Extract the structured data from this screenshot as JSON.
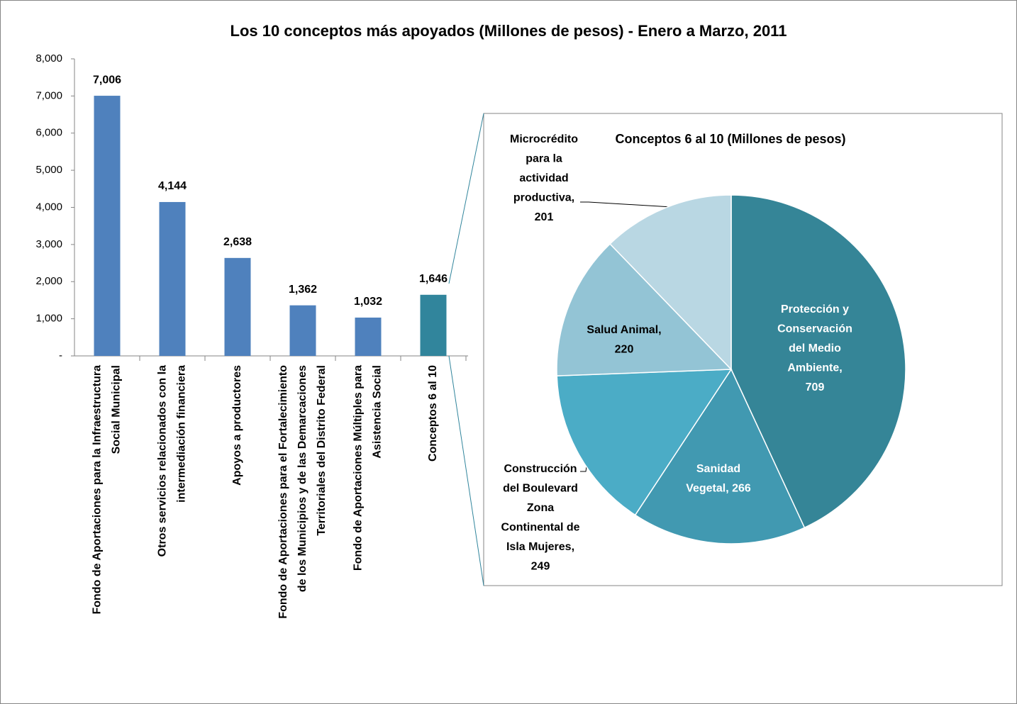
{
  "chart_data": [
    {
      "type": "bar",
      "title": "Los 10 conceptos más apoyados (Millones de pesos) - Enero a Marzo, 2011",
      "categories": [
        [
          "Fondo de Aportaciones para la Infraestructura",
          "Social Municipal"
        ],
        [
          "Otros servicios relacionados con la",
          "intermediación financiera"
        ],
        [
          "Apoyos a productores"
        ],
        [
          "Fondo de Aportaciones para el Fortalecimiento",
          "de los Municipios y de las Demarcaciones",
          "Territoriales del Distrito Federal"
        ],
        [
          "Fondo de Aportaciones Múltiples para",
          "Asistencia Social"
        ],
        [
          "Conceptos 6 al 10"
        ]
      ],
      "values": [
        7006,
        4144,
        2638,
        1362,
        1032,
        1646
      ],
      "value_labels": [
        "7,006",
        "4,144",
        "2,638",
        "1,362",
        "1,032",
        "1,646"
      ],
      "colors": [
        "#4f81bd",
        "#4f81bd",
        "#4f81bd",
        "#4f81bd",
        "#4f81bd",
        "#31859c"
      ],
      "ylim": [
        0,
        8000
      ],
      "yticks": [
        {
          "value": 0,
          "label": "-"
        },
        {
          "value": 1000,
          "label": "1,000"
        },
        {
          "value": 2000,
          "label": "2,000"
        },
        {
          "value": 3000,
          "label": "3,000"
        },
        {
          "value": 4000,
          "label": "4,000"
        },
        {
          "value": 5000,
          "label": "5,000"
        },
        {
          "value": 6000,
          "label": "6,000"
        },
        {
          "value": 7000,
          "label": "7,000"
        },
        {
          "value": 8000,
          "label": "8,000"
        }
      ],
      "grid": false
    },
    {
      "type": "pie",
      "title": "Conceptos 6 al 10 (Millones de pesos)",
      "values": [
        709,
        266,
        249,
        220,
        201
      ],
      "labels": [
        [
          "Protección y",
          "Conservación",
          "del Medio",
          "Ambiente,",
          "709"
        ],
        [
          "Sanidad",
          "Vegetal,  266"
        ],
        [
          "Construcción",
          "del Boulevard",
          "Zona",
          "Continental de",
          "Isla Mujeres,",
          "249"
        ],
        [
          "Salud Animal,",
          "220"
        ],
        [
          "Microcrédito",
          "para la",
          "actividad",
          "productiva,",
          "201"
        ]
      ],
      "colors": [
        "#358597",
        "#4199b1",
        "#4bacc6",
        "#93c4d5",
        "#b9d7e3"
      ]
    }
  ]
}
